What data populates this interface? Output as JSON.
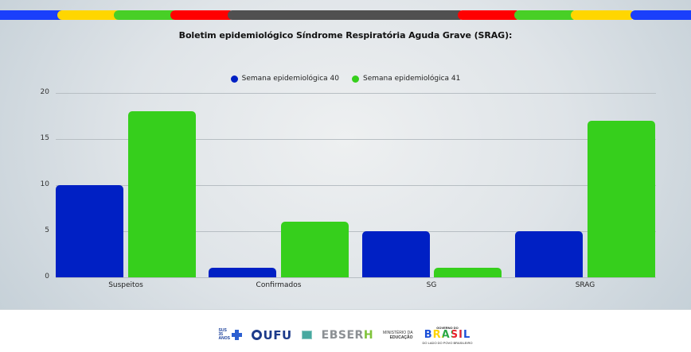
{
  "header": {
    "stripe_colors": {
      "blue": "#1a3ffb",
      "yellow": "#ffd600",
      "green": "#48cf26",
      "red": "#ff0000",
      "gray": "#505050"
    }
  },
  "title": "Boletim epidemiológico Síndrome Respiratória Aguda Grave (SRAG):",
  "legend": [
    {
      "label": "Semana epidemiológica 40",
      "color": "#0020c4"
    },
    {
      "label": "Semana epidemiológica 41",
      "color": "#36cf1c"
    }
  ],
  "axis": {
    "yticks": [
      "20",
      "15",
      "10",
      "5",
      "0"
    ]
  },
  "chart_data": {
    "type": "bar",
    "title": "Boletim epidemiológico Síndrome Respiratória Aguda Grave (SRAG):",
    "categories": [
      "Suspeitos",
      "Confirmados",
      "SG",
      "SRAG"
    ],
    "series": [
      {
        "name": "Semana epidemiológica 40",
        "color": "#0020c4",
        "values": [
          10,
          1,
          5,
          5
        ]
      },
      {
        "name": "Semana epidemiológica 41",
        "color": "#36cf1c",
        "values": [
          18,
          6,
          1,
          17
        ]
      }
    ],
    "xlabel": "",
    "ylabel": "",
    "ylim": [
      0,
      20
    ],
    "yticks": [
      0,
      5,
      10,
      15,
      20
    ],
    "grid": true,
    "legend_position": "top"
  },
  "footer": {
    "logos": {
      "sus": "SUS 35 ANOS",
      "ufu": "UFU",
      "ebserh": "EBSER",
      "ebserh_h": "H",
      "mec_line1": "MINISTÉRIO DA",
      "mec_line2": "EDUCAÇÃO",
      "gov_top": "GOVERNO DO",
      "gov_main": "BRASIL",
      "gov_bottom": "DO LADO DO POVO BRASILEIRO"
    }
  }
}
